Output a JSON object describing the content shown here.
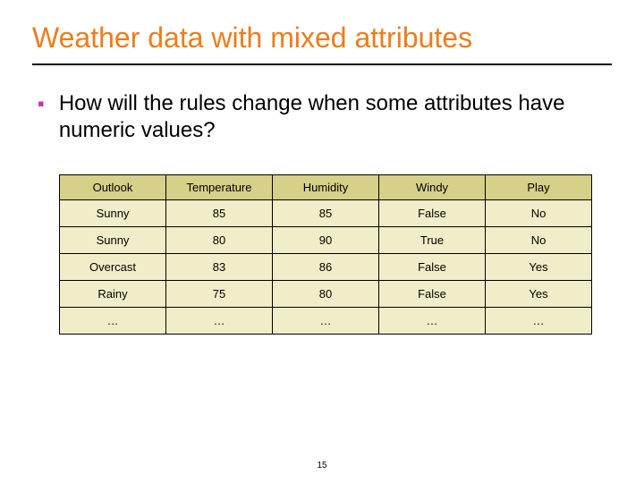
{
  "title": "Weather data with mixed attributes",
  "bullet": "How will the rules change when some attributes have numeric values?",
  "table": {
    "columns": [
      "Outlook",
      "Temperature",
      "Humidity",
      "Windy",
      "Play"
    ],
    "rows": [
      [
        "Sunny",
        "85",
        "85",
        "False",
        "No"
      ],
      [
        "Sunny",
        "80",
        "90",
        "True",
        "No"
      ],
      [
        "Overcast",
        "83",
        "86",
        "False",
        "Yes"
      ],
      [
        "Rainy",
        "75",
        "80",
        "False",
        "Yes"
      ],
      [
        "…",
        "…",
        "…",
        "…",
        "…"
      ]
    ],
    "header_bg": "#d7d088",
    "cell_bg": "#f2edc9",
    "border_color": "#000000",
    "header_fontsize": 13,
    "cell_fontsize": 13,
    "col_count": 5
  },
  "colors": {
    "title": "#ed7d1a",
    "bullet_mark": "#cc3399",
    "underline": "#000000",
    "background": "#ffffff"
  },
  "page_number": "15"
}
